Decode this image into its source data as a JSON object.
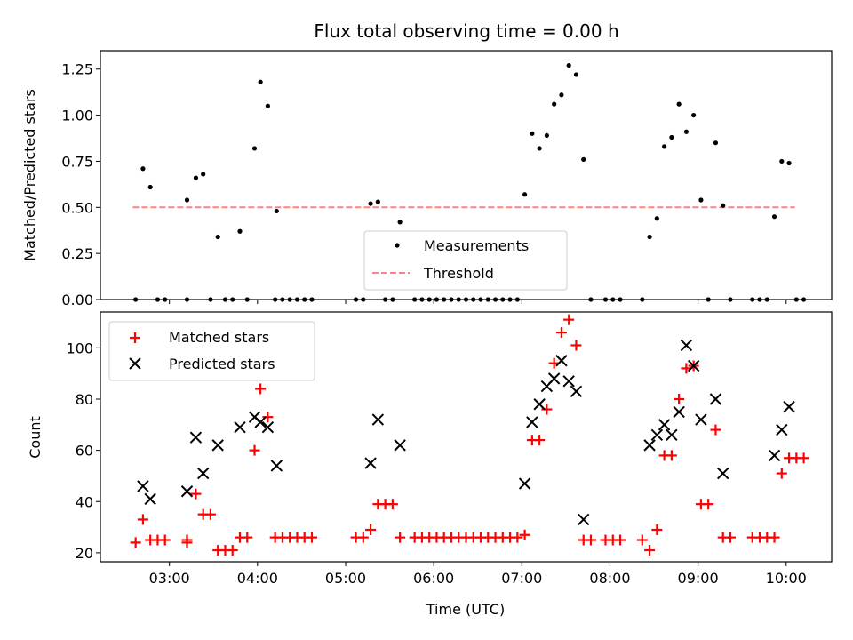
{
  "figure": {
    "title": "Flux total observing time = 0.00 h",
    "xlabel": "Time (UTC)"
  },
  "chart_data": [
    {
      "type": "scatter",
      "panel": "top",
      "ylabel": "Matched/Predicted stars",
      "ylim": [
        0,
        1.35
      ],
      "xlim": [
        "02:13",
        "10:31"
      ],
      "yticks": [
        0.0,
        0.25,
        0.5,
        0.75,
        1.0,
        1.25
      ],
      "ytick_labels": [
        "0.00",
        "0.25",
        "0.50",
        "0.75",
        "1.00",
        "1.25"
      ],
      "legend": {
        "placement": "bottom-center",
        "entries": [
          "Measurements",
          "Threshold"
        ]
      },
      "threshold": {
        "name": "Threshold",
        "y": 0.5,
        "x_range": [
          "02:35",
          "10:06"
        ],
        "color": "#ff8080",
        "style": "dashed"
      },
      "series": [
        {
          "name": "Measurements",
          "color": "#000000",
          "marker": "dot",
          "points": [
            [
              "02:37",
              0
            ],
            [
              "02:42",
              0.71
            ],
            [
              "02:47",
              0.61
            ],
            [
              "02:52",
              0
            ],
            [
              "02:57",
              0
            ],
            [
              "03:12",
              0
            ],
            [
              "03:12",
              0.54
            ],
            [
              "03:18",
              0.66
            ],
            [
              "03:23",
              0.68
            ],
            [
              "03:28",
              0
            ],
            [
              "03:33",
              0.34
            ],
            [
              "03:38",
              0
            ],
            [
              "03:43",
              0
            ],
            [
              "03:48",
              0.37
            ],
            [
              "03:53",
              0
            ],
            [
              "03:58",
              0.82
            ],
            [
              "04:02",
              1.18
            ],
            [
              "04:07",
              1.05
            ],
            [
              "04:12",
              0
            ],
            [
              "04:13",
              0.48
            ],
            [
              "04:17",
              0
            ],
            [
              "04:22",
              0
            ],
            [
              "04:27",
              0
            ],
            [
              "04:32",
              0
            ],
            [
              "04:37",
              0
            ],
            [
              "05:07",
              0
            ],
            [
              "05:12",
              0
            ],
            [
              "05:17",
              0.52
            ],
            [
              "05:22",
              0.53
            ],
            [
              "05:27",
              0
            ],
            [
              "05:32",
              0
            ],
            [
              "05:37",
              0.42
            ],
            [
              "05:47",
              0
            ],
            [
              "05:52",
              0
            ],
            [
              "05:57",
              0
            ],
            [
              "06:02",
              0
            ],
            [
              "06:07",
              0
            ],
            [
              "06:12",
              0
            ],
            [
              "06:17",
              0
            ],
            [
              "06:22",
              0
            ],
            [
              "06:27",
              0
            ],
            [
              "06:32",
              0
            ],
            [
              "06:37",
              0
            ],
            [
              "06:42",
              0
            ],
            [
              "06:47",
              0
            ],
            [
              "06:52",
              0
            ],
            [
              "06:57",
              0
            ],
            [
              "07:02",
              0.57
            ],
            [
              "07:07",
              0.9
            ],
            [
              "07:12",
              0.82
            ],
            [
              "07:17",
              0.89
            ],
            [
              "07:22",
              1.06
            ],
            [
              "07:27",
              1.11
            ],
            [
              "07:32",
              1.27
            ],
            [
              "07:37",
              1.22
            ],
            [
              "07:42",
              0.76
            ],
            [
              "07:47",
              0
            ],
            [
              "07:57",
              0
            ],
            [
              "08:02",
              0
            ],
            [
              "08:07",
              0
            ],
            [
              "08:22",
              0
            ],
            [
              "08:27",
              0.34
            ],
            [
              "08:32",
              0.44
            ],
            [
              "08:37",
              0.83
            ],
            [
              "08:42",
              0.88
            ],
            [
              "08:47",
              1.06
            ],
            [
              "08:52",
              0.91
            ],
            [
              "08:57",
              1.0
            ],
            [
              "09:02",
              0.54
            ],
            [
              "09:07",
              0
            ],
            [
              "09:12",
              0.85
            ],
            [
              "09:17",
              0.51
            ],
            [
              "09:22",
              0
            ],
            [
              "09:37",
              0
            ],
            [
              "09:42",
              0
            ],
            [
              "09:47",
              0
            ],
            [
              "09:52",
              0.45
            ],
            [
              "09:57",
              0.75
            ],
            [
              "10:02",
              0.74
            ],
            [
              "10:07",
              0
            ],
            [
              "10:12",
              0
            ]
          ]
        }
      ]
    },
    {
      "type": "scatter",
      "panel": "bottom",
      "ylabel": "Count",
      "ylim": [
        16.5,
        114
      ],
      "xlim": [
        "02:13",
        "10:31"
      ],
      "yticks": [
        20,
        40,
        60,
        80,
        100
      ],
      "ytick_labels": [
        "20",
        "40",
        "60",
        "80",
        "100"
      ],
      "xticks": [
        "03:00",
        "04:00",
        "05:00",
        "06:00",
        "07:00",
        "08:00",
        "09:00",
        "10:00"
      ],
      "xtick_labels": [
        "03:00",
        "04:00",
        "05:00",
        "06:00",
        "07:00",
        "08:00",
        "09:00",
        "10:00"
      ],
      "legend": {
        "placement": "upper-left",
        "entries": [
          "Matched stars",
          "Predicted stars"
        ]
      },
      "series": [
        {
          "name": "Matched stars",
          "color": "#ff0000",
          "marker": "plus",
          "points": [
            [
              "02:37",
              24
            ],
            [
              "02:42",
              33
            ],
            [
              "02:47",
              25
            ],
            [
              "02:52",
              25
            ],
            [
              "02:57",
              25
            ],
            [
              "03:12",
              25
            ],
            [
              "03:12",
              24
            ],
            [
              "03:18",
              43
            ],
            [
              "03:23",
              35
            ],
            [
              "03:28",
              35
            ],
            [
              "03:33",
              21
            ],
            [
              "03:38",
              21
            ],
            [
              "03:43",
              21
            ],
            [
              "03:48",
              26
            ],
            [
              "03:53",
              26
            ],
            [
              "03:58",
              60
            ],
            [
              "04:02",
              84
            ],
            [
              "04:07",
              73
            ],
            [
              "04:12",
              26
            ],
            [
              "04:17",
              26
            ],
            [
              "04:22",
              26
            ],
            [
              "04:27",
              26
            ],
            [
              "04:32",
              26
            ],
            [
              "04:37",
              26
            ],
            [
              "05:07",
              26
            ],
            [
              "05:12",
              26
            ],
            [
              "05:17",
              29
            ],
            [
              "05:22",
              39
            ],
            [
              "05:27",
              39
            ],
            [
              "05:32",
              39
            ],
            [
              "05:37",
              26
            ],
            [
              "05:47",
              26
            ],
            [
              "05:52",
              26
            ],
            [
              "05:57",
              26
            ],
            [
              "06:02",
              26
            ],
            [
              "06:07",
              26
            ],
            [
              "06:12",
              26
            ],
            [
              "06:17",
              26
            ],
            [
              "06:22",
              26
            ],
            [
              "06:27",
              26
            ],
            [
              "06:32",
              26
            ],
            [
              "06:37",
              26
            ],
            [
              "06:42",
              26
            ],
            [
              "06:47",
              26
            ],
            [
              "06:52",
              26
            ],
            [
              "06:57",
              26
            ],
            [
              "07:02",
              27
            ],
            [
              "07:07",
              64
            ],
            [
              "07:12",
              64
            ],
            [
              "07:17",
              76
            ],
            [
              "07:22",
              94
            ],
            [
              "07:27",
              106
            ],
            [
              "07:32",
              111
            ],
            [
              "07:37",
              101
            ],
            [
              "07:42",
              25
            ],
            [
              "07:47",
              25
            ],
            [
              "07:57",
              25
            ],
            [
              "08:02",
              25
            ],
            [
              "08:07",
              25
            ],
            [
              "08:22",
              25
            ],
            [
              "08:27",
              21
            ],
            [
              "08:32",
              29
            ],
            [
              "08:37",
              58
            ],
            [
              "08:42",
              58
            ],
            [
              "08:47",
              80
            ],
            [
              "08:52",
              92
            ],
            [
              "08:57",
              93
            ],
            [
              "09:02",
              39
            ],
            [
              "09:07",
              39
            ],
            [
              "09:12",
              68
            ],
            [
              "09:17",
              26
            ],
            [
              "09:22",
              26
            ],
            [
              "09:37",
              26
            ],
            [
              "09:42",
              26
            ],
            [
              "09:47",
              26
            ],
            [
              "09:52",
              26
            ],
            [
              "09:57",
              51
            ],
            [
              "10:02",
              57
            ],
            [
              "10:07",
              57
            ],
            [
              "10:12",
              57
            ]
          ]
        },
        {
          "name": "Predicted stars",
          "color": "#000000",
          "marker": "x",
          "points": [
            [
              "02:42",
              46
            ],
            [
              "02:47",
              41
            ],
            [
              "03:12",
              44
            ],
            [
              "03:18",
              65
            ],
            [
              "03:23",
              51
            ],
            [
              "03:33",
              62
            ],
            [
              "03:48",
              69
            ],
            [
              "03:58",
              73
            ],
            [
              "04:02",
              71
            ],
            [
              "04:07",
              69
            ],
            [
              "04:13",
              54
            ],
            [
              "05:17",
              55
            ],
            [
              "05:22",
              72
            ],
            [
              "05:37",
              62
            ],
            [
              "07:02",
              47
            ],
            [
              "07:07",
              71
            ],
            [
              "07:12",
              78
            ],
            [
              "07:17",
              85
            ],
            [
              "07:22",
              88
            ],
            [
              "07:27",
              95
            ],
            [
              "07:32",
              87
            ],
            [
              "07:37",
              83
            ],
            [
              "07:42",
              33
            ],
            [
              "08:27",
              62
            ],
            [
              "08:32",
              66
            ],
            [
              "08:37",
              70
            ],
            [
              "08:42",
              66
            ],
            [
              "08:47",
              75
            ],
            [
              "08:52",
              101
            ],
            [
              "08:57",
              93
            ],
            [
              "09:02",
              72
            ],
            [
              "09:12",
              80
            ],
            [
              "09:17",
              51
            ],
            [
              "09:52",
              58
            ],
            [
              "09:57",
              68
            ],
            [
              "10:02",
              77
            ]
          ]
        }
      ]
    }
  ]
}
